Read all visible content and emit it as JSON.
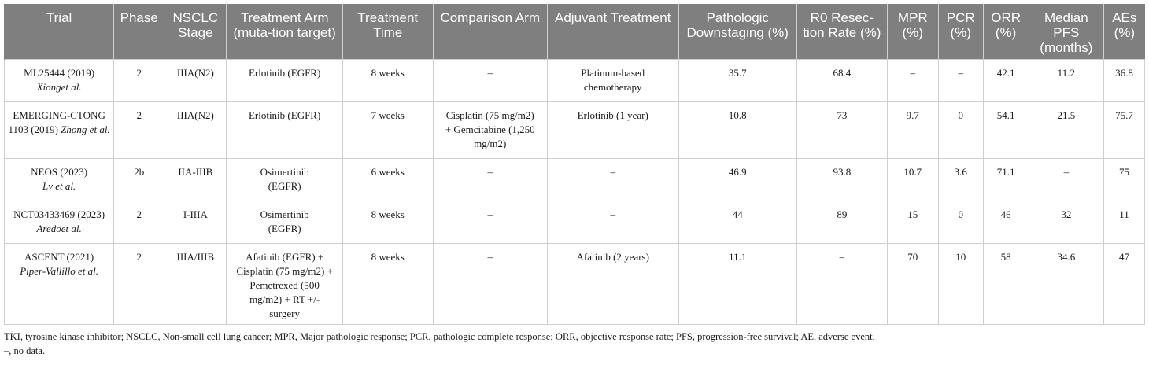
{
  "table": {
    "headers": [
      "Trial",
      "Phase",
      "NSCLC Stage",
      "Treatment Arm (muta-tion target)",
      "Treatment Time",
      "Comparison Arm",
      "Adjuvant Treatment",
      "Pathologic Downstaging (%)",
      "R0 Resec-tion Rate (%)",
      "MPR (%)",
      "PCR (%)",
      "ORR (%)",
      "Median PFS (months)",
      "AEs (%)"
    ],
    "rows": [
      {
        "trial": "ML25444 (2019)",
        "author": "Xionget al.",
        "phase": "2",
        "stage": "IIIA(N2)",
        "treatment_arm": "Erlotinib (EGFR)",
        "treatment_time": "8 weeks",
        "comparison_arm": "–",
        "adjuvant": "Platinum-based chemotherapy",
        "downstaging": "35.7",
        "r0": "68.4",
        "mpr": "–",
        "pcr": "–",
        "orr": "42.1",
        "pfs": "11.2",
        "aes": "36.8"
      },
      {
        "trial": "EMERGING-CTONG 1103 (2019)",
        "author": "Zhong et al.",
        "phase": "2",
        "stage": "IIIA(N2)",
        "treatment_arm": "Erlotinib (EGFR)",
        "treatment_time": "7 weeks",
        "comparison_arm": "Cisplatin (75 mg/m2) + Gemcitabine (1,250 mg/m2)",
        "adjuvant": "Erlotinib (1 year)",
        "downstaging": "10.8",
        "r0": "73",
        "mpr": "9.7",
        "pcr": "0",
        "orr": "54.1",
        "pfs": "21.5",
        "aes": "75.7"
      },
      {
        "trial": "NEOS (2023)",
        "author": "Lv et al.",
        "phase": "2b",
        "stage": "IIA-IIIB",
        "treatment_arm": "Osimertinib (EGFR)",
        "treatment_time": "6 weeks",
        "comparison_arm": "–",
        "adjuvant": "–",
        "downstaging": "46.9",
        "r0": "93.8",
        "mpr": "10.7",
        "pcr": "3.6",
        "orr": "71.1",
        "pfs": "–",
        "aes": "75"
      },
      {
        "trial": "NCT03433469 (2023)",
        "author": "Aredoet al.",
        "phase": "2",
        "stage": "I-IIIA",
        "treatment_arm": "Osimertinib (EGFR)",
        "treatment_time": "8 weeks",
        "comparison_arm": "–",
        "adjuvant": "–",
        "downstaging": "44",
        "r0": "89",
        "mpr": "15",
        "pcr": "0",
        "orr": "46",
        "pfs": "32",
        "aes": "11"
      },
      {
        "trial": "ASCENT (2021)",
        "author": "Piper-Vallillo et al.",
        "phase": "2",
        "stage": "IIIA/IIIB",
        "treatment_arm": "Afatinib (EGFR) + Cisplatin (75 mg/m2) + Pemetrexed (500 mg/m2) + RT +/- surgery",
        "treatment_time": "8 weeks",
        "comparison_arm": "–",
        "adjuvant": "Afatinib (2 years)",
        "downstaging": "11.1",
        "r0": "–",
        "mpr": "70",
        "pcr": "10",
        "orr": "58",
        "pfs": "34.6",
        "aes": "47"
      }
    ]
  },
  "footnotes": [
    "TKI, tyrosine kinase inhibitor; NSCLC, Non-small cell lung cancer; MPR, Major pathologic response; PCR, pathologic complete response; ORR, objective response rate; PFS, progression-free survival; AE, adverse event.",
    "–, no data."
  ]
}
